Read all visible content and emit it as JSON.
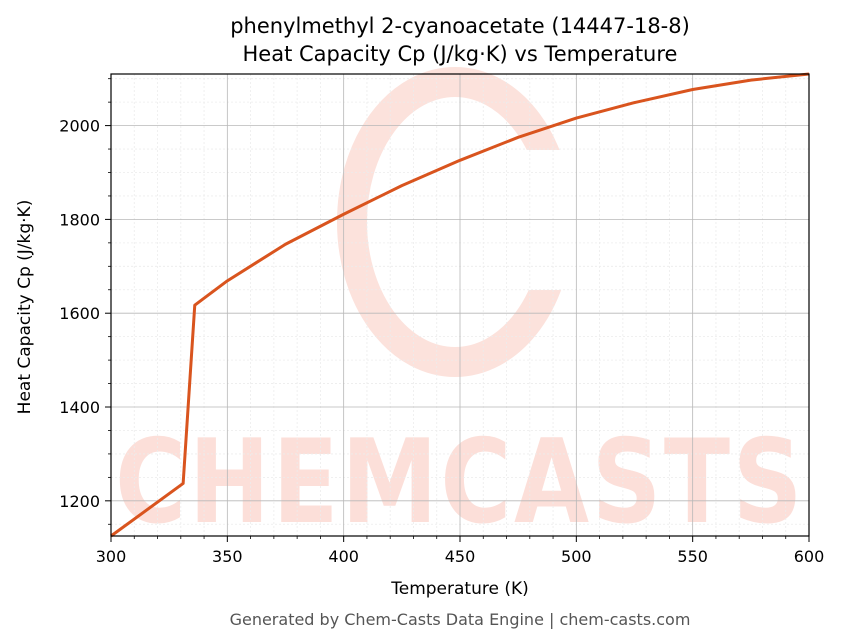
{
  "chart_data": {
    "type": "line",
    "title": "phenylmethyl 2-cyanoacetate (14447-18-8)",
    "subtitle": "Heat Capacity Cp (J/kg·K) vs Temperature",
    "xlabel": "Temperature (K)",
    "ylabel": "Heat Capacity Cp (J/kg·K)",
    "xlim": [
      300,
      600
    ],
    "ylim": [
      1125,
      2110
    ],
    "x_ticks": [
      300,
      350,
      400,
      450,
      500,
      550,
      600
    ],
    "y_ticks": [
      1200,
      1400,
      1600,
      1800,
      2000
    ],
    "grid": true,
    "series": [
      {
        "color": "#d9541e",
        "x": [
          300,
          331,
          336,
          340,
          350,
          375,
          400,
          425,
          450,
          475,
          500,
          525,
          550,
          575,
          600
        ],
        "y": [
          1125,
          1237,
          1617,
          1632,
          1669,
          1747,
          1811,
          1872,
          1926,
          1975,
          2016,
          2049,
          2077,
          2097,
          2110
        ]
      }
    ]
  },
  "watermark": {
    "text": "CHEMCASTS",
    "color": "#fbd5cd"
  },
  "footer": "Generated by Chem-Casts Data Engine | chem-casts.com"
}
